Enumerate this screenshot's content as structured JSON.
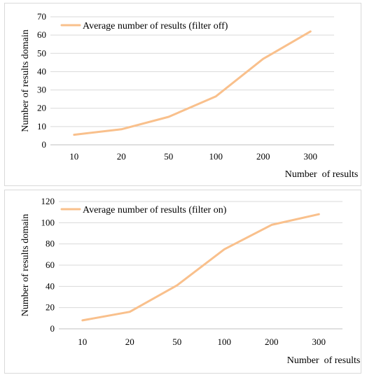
{
  "colors": {
    "series": "#F9C08C",
    "grid": "#d9d9d9"
  },
  "chart_data": [
    {
      "type": "line",
      "categories": [
        "10",
        "20",
        "50",
        "100",
        "200",
        "300"
      ],
      "series": [
        {
          "name": "Average number of results (filter off)",
          "values": [
            5.5,
            8.5,
            15.3,
            26.5,
            47,
            62
          ]
        }
      ],
      "title": "",
      "xlabel": "Number  of results",
      "ylabel": "Number of results domain",
      "ylim": [
        0,
        70
      ],
      "yticks": [
        "0",
        "10",
        "20",
        "30",
        "40",
        "50",
        "60",
        "70"
      ],
      "grid": true,
      "legend_position": "top-left"
    },
    {
      "type": "line",
      "categories": [
        "10",
        "20",
        "50",
        "100",
        "200",
        "300"
      ],
      "series": [
        {
          "name": "Average number of results (filter on)",
          "values": [
            8,
            16,
            41,
            75,
            98,
            108
          ]
        }
      ],
      "title": "",
      "xlabel": "Number  of results",
      "ylabel": "Number of results domain",
      "ylim": [
        0,
        120
      ],
      "yticks": [
        "0",
        "20",
        "40",
        "60",
        "80",
        "100",
        "120"
      ],
      "grid": true,
      "legend_position": "top-left"
    }
  ]
}
